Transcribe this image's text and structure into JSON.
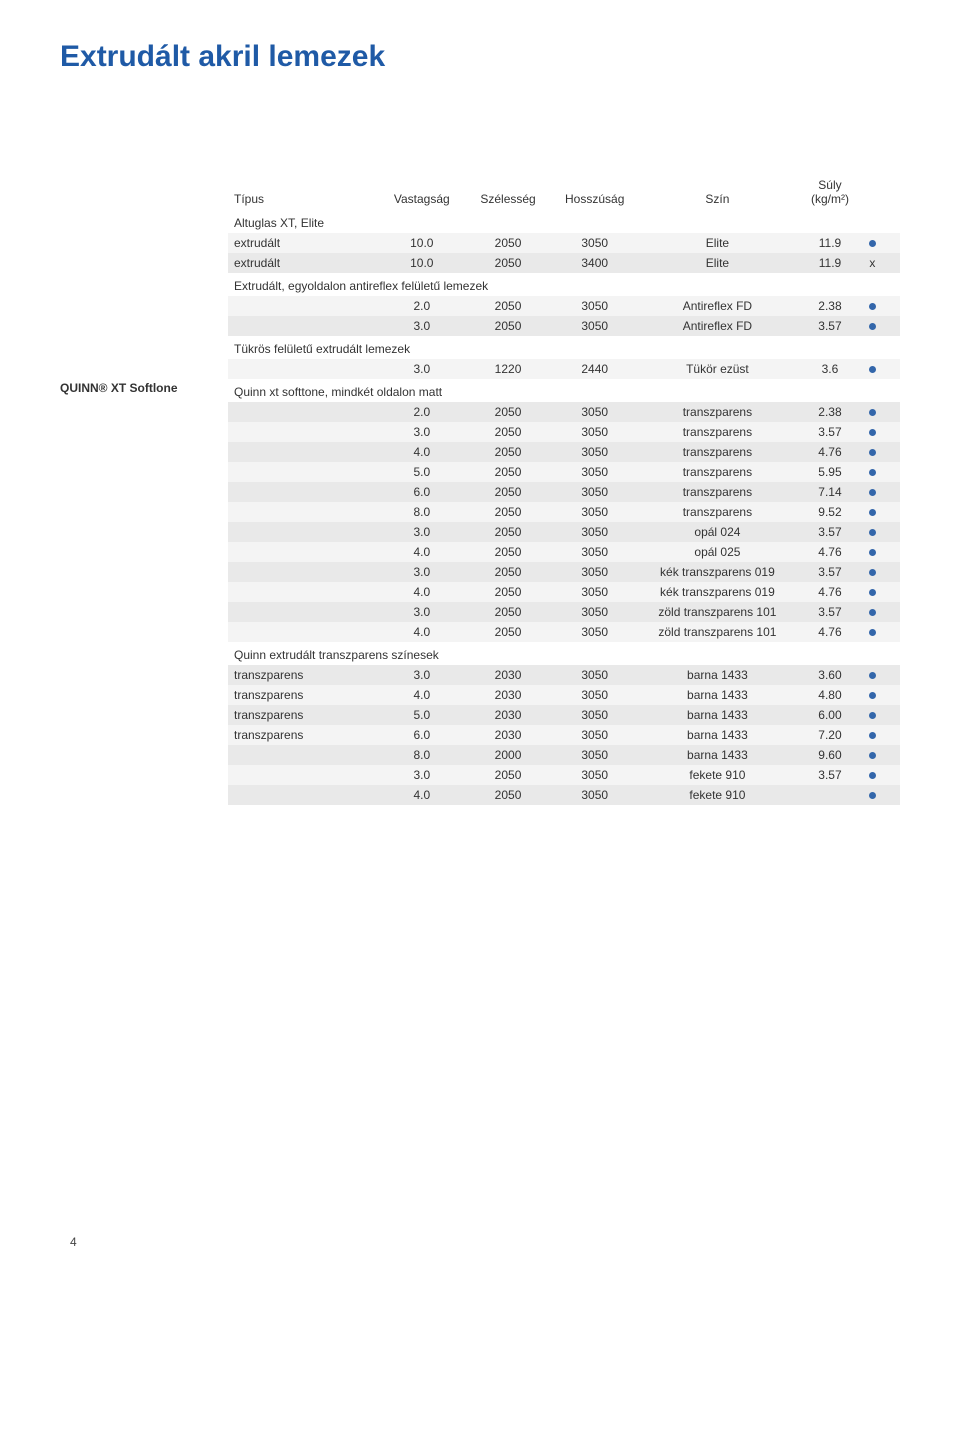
{
  "title_text": "Extrudált akril lemezek",
  "title_color": "#1f5aa6",
  "left_brand": "QUINN® XT Softlone",
  "page_number": "4",
  "headers": {
    "type": "Típus",
    "vast": "Vastagság",
    "szel": "Szélesség",
    "hoss": "Hosszúság",
    "szin": "Szín",
    "suly": "Súly\n(kg/m²)"
  },
  "stripe_even": "#f4f4f4",
  "stripe_odd": "#e9e9e9",
  "dot_color": "#3366aa",
  "rows": [
    {
      "section": "Altuglas XT, Elite"
    },
    {
      "type": "extrudált",
      "vast": "10.0",
      "szel": "2050",
      "hoss": "3050",
      "szin": "Elite",
      "suly": "11.9",
      "mark": "dot"
    },
    {
      "type": "extrudált",
      "vast": "10.0",
      "szel": "2050",
      "hoss": "3400",
      "szin": "Elite",
      "suly": "11.9",
      "mark": "x"
    },
    {
      "section": "Extrudált, egyoldalon antireflex felületű lemezek"
    },
    {
      "type": "",
      "vast": "2.0",
      "szel": "2050",
      "hoss": "3050",
      "szin": "Antireflex FD",
      "suly": "2.38",
      "mark": "dot"
    },
    {
      "type": "",
      "vast": "3.0",
      "szel": "2050",
      "hoss": "3050",
      "szin": "Antireflex FD",
      "suly": "3.57",
      "mark": "dot"
    },
    {
      "section": "Tükrös felületű extrudált lemezek"
    },
    {
      "type": "",
      "vast": "3.0",
      "szel": "1220",
      "hoss": "2440",
      "szin": "Tükör ezüst",
      "suly": "3.6",
      "mark": "dot"
    },
    {
      "section": "Quinn xt softtone, mindkét oldalon matt",
      "is_brand_row": true
    },
    {
      "type": "",
      "vast": "2.0",
      "szel": "2050",
      "hoss": "3050",
      "szin": "transzparens",
      "suly": "2.38",
      "mark": "dot"
    },
    {
      "type": "",
      "vast": "3.0",
      "szel": "2050",
      "hoss": "3050",
      "szin": "transzparens",
      "suly": "3.57",
      "mark": "dot"
    },
    {
      "type": "",
      "vast": "4.0",
      "szel": "2050",
      "hoss": "3050",
      "szin": "transzparens",
      "suly": "4.76",
      "mark": "dot"
    },
    {
      "type": "",
      "vast": "5.0",
      "szel": "2050",
      "hoss": "3050",
      "szin": "transzparens",
      "suly": "5.95",
      "mark": "dot"
    },
    {
      "type": "",
      "vast": "6.0",
      "szel": "2050",
      "hoss": "3050",
      "szin": "transzparens",
      "suly": "7.14",
      "mark": "dot"
    },
    {
      "type": "",
      "vast": "8.0",
      "szel": "2050",
      "hoss": "3050",
      "szin": "transzparens",
      "suly": "9.52",
      "mark": "dot"
    },
    {
      "type": "",
      "vast": "3.0",
      "szel": "2050",
      "hoss": "3050",
      "szin": "opál 024",
      "suly": "3.57",
      "mark": "dot"
    },
    {
      "type": "",
      "vast": "4.0",
      "szel": "2050",
      "hoss": "3050",
      "szin": "opál 025",
      "suly": "4.76",
      "mark": "dot"
    },
    {
      "type": "",
      "vast": "3.0",
      "szel": "2050",
      "hoss": "3050",
      "szin": "kék transzparens 019",
      "suly": "3.57",
      "mark": "dot"
    },
    {
      "type": "",
      "vast": "4.0",
      "szel": "2050",
      "hoss": "3050",
      "szin": "kék transzparens 019",
      "suly": "4.76",
      "mark": "dot"
    },
    {
      "type": "",
      "vast": "3.0",
      "szel": "2050",
      "hoss": "3050",
      "szin": "zöld transzparens 101",
      "suly": "3.57",
      "mark": "dot"
    },
    {
      "type": "",
      "vast": "4.0",
      "szel": "2050",
      "hoss": "3050",
      "szin": "zöld transzparens 101",
      "suly": "4.76",
      "mark": "dot"
    },
    {
      "section": "Quinn extrudált transzparens színesek"
    },
    {
      "type": "transzparens",
      "vast": "3.0",
      "szel": "2030",
      "hoss": "3050",
      "szin": "barna 1433",
      "suly": "3.60",
      "mark": "dot"
    },
    {
      "type": "transzparens",
      "vast": "4.0",
      "szel": "2030",
      "hoss": "3050",
      "szin": "barna 1433",
      "suly": "4.80",
      "mark": "dot"
    },
    {
      "type": "transzparens",
      "vast": "5.0",
      "szel": "2030",
      "hoss": "3050",
      "szin": "barna 1433",
      "suly": "6.00",
      "mark": "dot"
    },
    {
      "type": "transzparens",
      "vast": "6.0",
      "szel": "2030",
      "hoss": "3050",
      "szin": "barna 1433",
      "suly": "7.20",
      "mark": "dot"
    },
    {
      "type": "",
      "vast": "8.0",
      "szel": "2000",
      "hoss": "3050",
      "szin": "barna 1433",
      "suly": "9.60",
      "mark": "dot"
    },
    {
      "type": "",
      "vast": "3.0",
      "szel": "2050",
      "hoss": "3050",
      "szin": "fekete 910",
      "suly": "3.57",
      "mark": "dot"
    },
    {
      "type": "",
      "vast": "4.0",
      "szel": "2050",
      "hoss": "3050",
      "szin": "fekete 910",
      "suly": "",
      "mark": "dot"
    }
  ]
}
